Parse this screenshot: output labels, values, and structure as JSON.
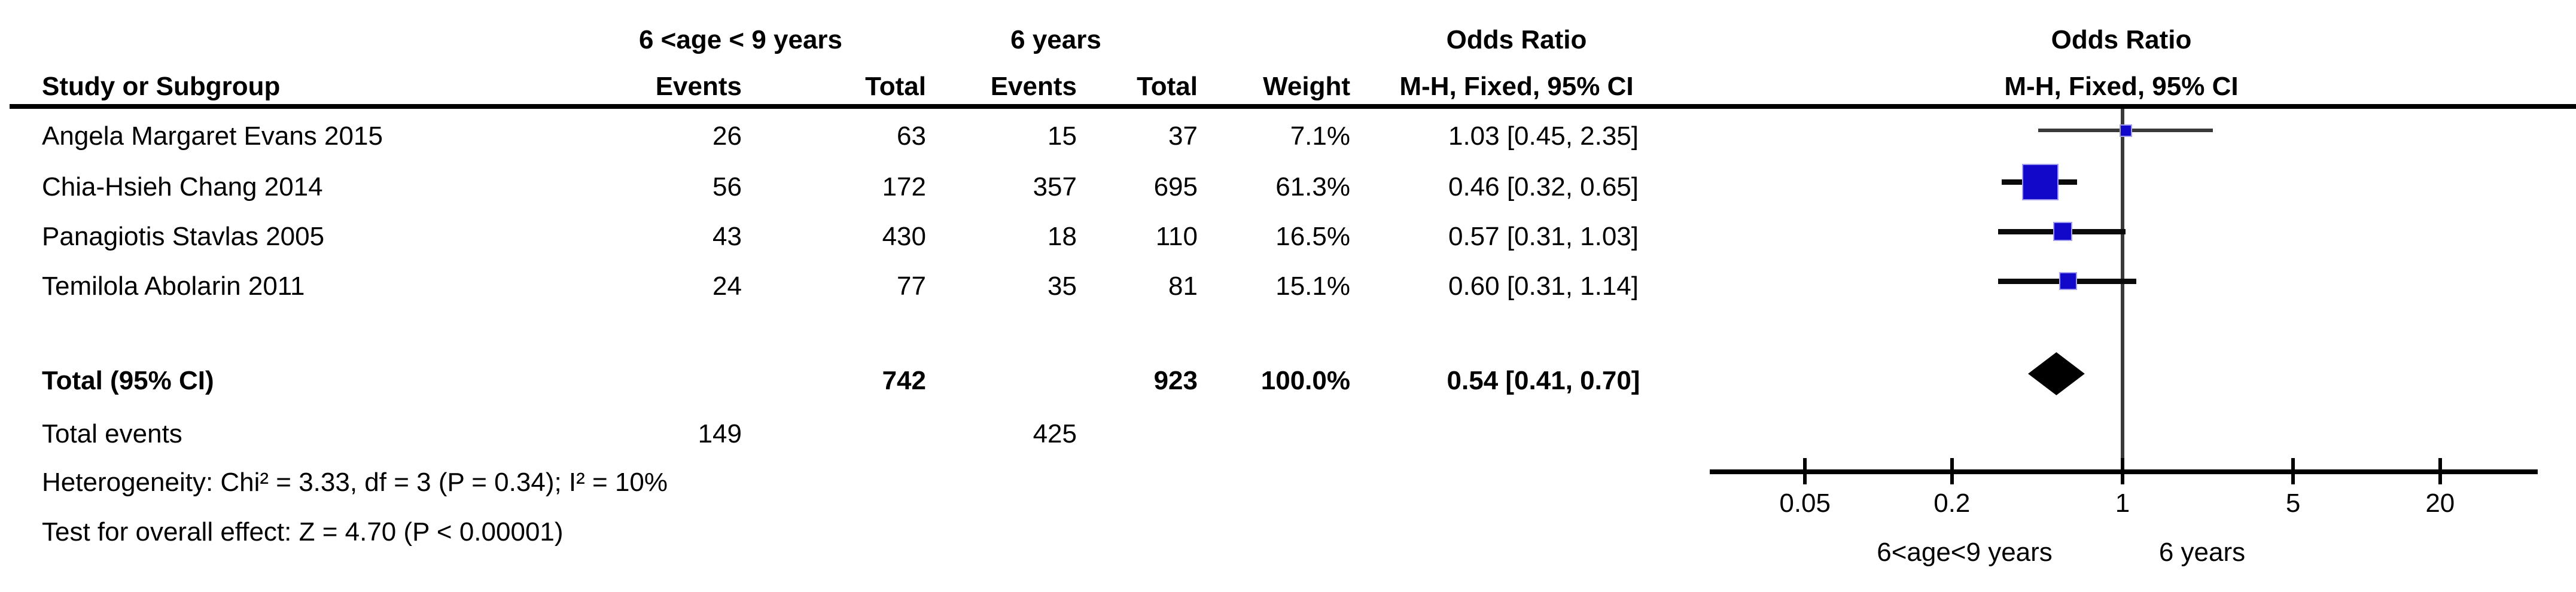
{
  "columns": {
    "study_or_subgroup": "Study or Subgroup",
    "group1": "6 <age < 9 years",
    "group2": "6 years",
    "events": "Events",
    "total": "Total",
    "weight": "Weight",
    "odds_ratio": "Odds Ratio",
    "mh_fixed_ci": "M-H, Fixed, 95% CI"
  },
  "rows": [
    {
      "study": "Angela Margaret Evans 2015",
      "events1": "26",
      "total1": "63",
      "events2": "15",
      "total2": "37",
      "weight": "7.1%",
      "or_ci": "1.03 [0.45, 2.35]"
    },
    {
      "study": "Chia-Hsieh Chang 2014",
      "events1": "56",
      "total1": "172",
      "events2": "357",
      "total2": "695",
      "weight": "61.3%",
      "or_ci": "0.46 [0.32, 0.65]"
    },
    {
      "study": "Panagiotis Stavlas 2005",
      "events1": "43",
      "total1": "430",
      "events2": "18",
      "total2": "110",
      "weight": "16.5%",
      "or_ci": "0.57 [0.31, 1.03]"
    },
    {
      "study": "Temilola Abolarin 2011",
      "events1": "24",
      "total1": "77",
      "events2": "35",
      "total2": "81",
      "weight": "15.1%",
      "or_ci": "0.60 [0.31, 1.14]"
    }
  ],
  "total_row": {
    "label": "Total (95% CI)",
    "total1": "742",
    "total2": "923",
    "weight": "100.0%",
    "or_ci": "0.54 [0.41, 0.70]"
  },
  "total_events_row": {
    "label": "Total events",
    "events1": "149",
    "events2": "425"
  },
  "stats": {
    "heterogeneity": "Heterogeneity: Chi² = 3.33, df = 3 (P = 0.34); I² = 10%",
    "overall_effect": "Test for overall effect: Z = 4.70 (P < 0.00001)"
  },
  "footer": {
    "left": "6<age<9 years",
    "right": "6 years"
  },
  "chart_data": {
    "type": "forest",
    "effect_measure": "Odds Ratio, M-H, Fixed, 95% CI",
    "x_scale": "log10",
    "x_range": [
      0.02,
      40
    ],
    "ticks": [
      {
        "value": 0.05,
        "label": "0.05"
      },
      {
        "value": 0.2,
        "label": "0.2"
      },
      {
        "value": 1,
        "label": "1"
      },
      {
        "value": 5,
        "label": "5"
      },
      {
        "value": 20,
        "label": "20"
      }
    ],
    "null_value": 1,
    "studies": [
      {
        "name": "Angela Margaret Evans 2015",
        "events_group1": 26,
        "total_group1": 63,
        "events_group2": 15,
        "total_group2": 37,
        "weight_pct": 7.1,
        "or": 1.03,
        "ci_low": 0.45,
        "ci_high": 2.35
      },
      {
        "name": "Chia-Hsieh Chang 2014",
        "events_group1": 56,
        "total_group1": 172,
        "events_group2": 357,
        "total_group2": 695,
        "weight_pct": 61.3,
        "or": 0.46,
        "ci_low": 0.32,
        "ci_high": 0.65
      },
      {
        "name": "Panagiotis Stavlas 2005",
        "events_group1": 43,
        "total_group1": 430,
        "events_group2": 18,
        "total_group2": 110,
        "weight_pct": 16.5,
        "or": 0.57,
        "ci_low": 0.31,
        "ci_high": 1.03
      },
      {
        "name": "Temilola Abolarin 2011",
        "events_group1": 24,
        "total_group1": 77,
        "events_group2": 35,
        "total_group2": 81,
        "weight_pct": 15.1,
        "or": 0.6,
        "ci_low": 0.31,
        "ci_high": 1.14
      }
    ],
    "summary": {
      "or": 0.54,
      "ci_low": 0.41,
      "ci_high": 0.7,
      "total_group1": 742,
      "total_group2": 923,
      "events_group1": 149,
      "events_group2": 425,
      "weight_pct": 100.0
    },
    "axis_group_labels": {
      "left": "6<age<9 years",
      "right": "6 years"
    },
    "colors": {
      "square": "#1208c9",
      "square_border": "#a29cee",
      "diamond": "#000000",
      "ci_line": "#0a0a0a",
      "ci_line_first": "#3a3a3a",
      "null_line": "#3a3a3a",
      "axis": "#000000"
    }
  }
}
